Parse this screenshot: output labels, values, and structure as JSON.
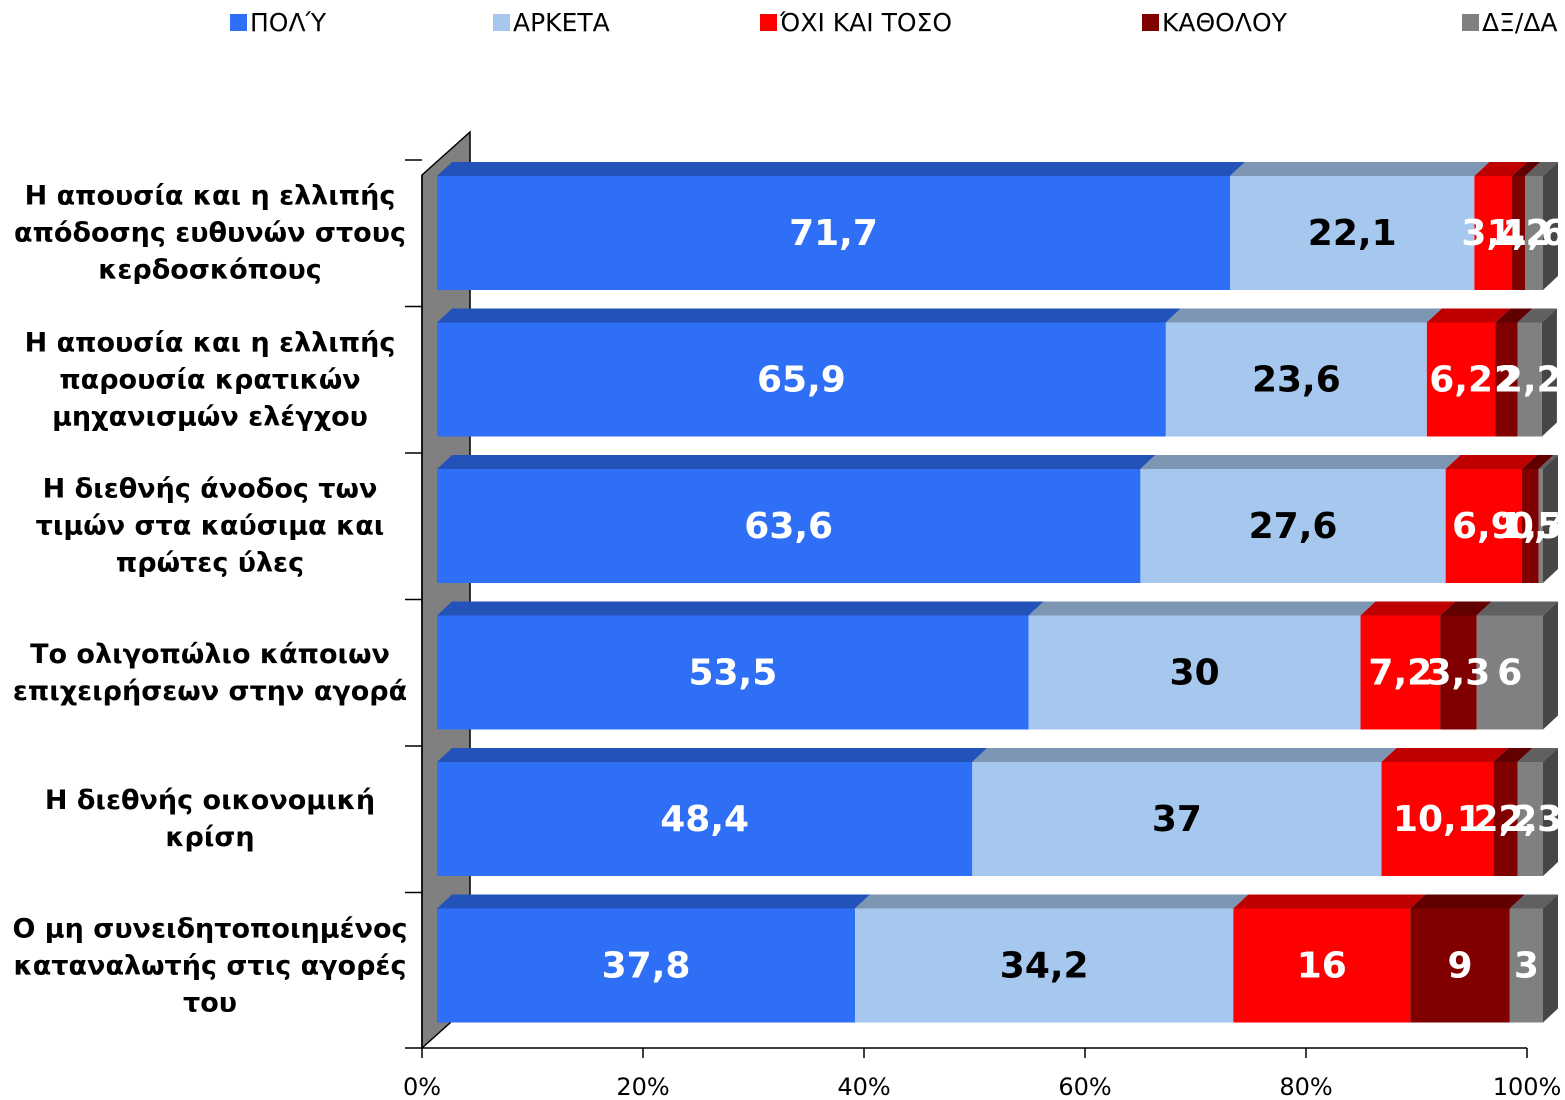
{
  "chart_data": {
    "type": "stacked-bar-horizontal",
    "categories": [
      "Η απουσία και η ελλιπής απόδοσης ευθυνών στους κερδοσκόπους",
      "Η απουσία και η ελλιπής παρουσία κρατικών μηχανισμών ελέγχου",
      "Η διεθνής άνοδος των τιμών στα καύσιμα και πρώτες ύλες",
      "Το ολιγοπώλιο κάποιων επιχειρήσεων στην αγορά",
      "Η διεθνής οικονομική κρίση",
      "Ο μη συνειδητοποιημένος καταναλωτής στις αγορές του"
    ],
    "series": [
      {
        "name": "ΠΟΛΎ",
        "color": "#2e6ff6",
        "values": [
          71.7,
          65.9,
          63.6,
          53.5,
          48.4,
          37.8
        ],
        "value_labels": [
          "71,7",
          "65,9",
          "63,6",
          "53,5",
          "48,4",
          "37,8"
        ]
      },
      {
        "name": "ΑΡΚΕΤΑ",
        "color": "#a6c8ef",
        "values": [
          22.1,
          23.6,
          27.6,
          30,
          37,
          34.2
        ],
        "value_labels": [
          "22,1",
          "23,6",
          "27,6",
          "30",
          "37",
          "34,2"
        ]
      },
      {
        "name": "ΌΧΙ ΚΑΙ ΤΟΣΟ",
        "color": "#ff0000",
        "values": [
          3.4,
          6.2,
          6.9,
          7.2,
          10.1,
          16
        ],
        "value_labels": [
          "3,4",
          "6,2",
          "6,9",
          "7,2",
          "10,1",
          "16"
        ]
      },
      {
        "name": "ΚΑΘΟΛΟΥ",
        "color": "#800000",
        "values": [
          1.2,
          2,
          1.5,
          3.3,
          2.2,
          9
        ],
        "value_labels": [
          "1,2",
          "2",
          "1,5",
          "3,3",
          "2,2",
          "9"
        ]
      },
      {
        "name": "ΔΞ/ΔΑ",
        "color": "#808080",
        "values": [
          1.6,
          2.2,
          0.4,
          6,
          2.3,
          3
        ],
        "value_labels": [
          "1,6",
          "2,2",
          "0,4",
          "6",
          "2,3",
          "3"
        ]
      }
    ],
    "label_colors": [
      "#ffffff",
      "#000000",
      "#ffffff",
      "#ffffff",
      "#ffffff"
    ],
    "xlim": [
      0,
      100
    ],
    "xticks": [
      {
        "value": 0,
        "label": "0%"
      },
      {
        "value": 20,
        "label": "20%"
      },
      {
        "value": 40,
        "label": "40%"
      },
      {
        "value": 60,
        "label": "60%"
      },
      {
        "value": 80,
        "label": "80%"
      },
      {
        "value": 100,
        "label": "100%"
      }
    ],
    "legend": "top"
  }
}
